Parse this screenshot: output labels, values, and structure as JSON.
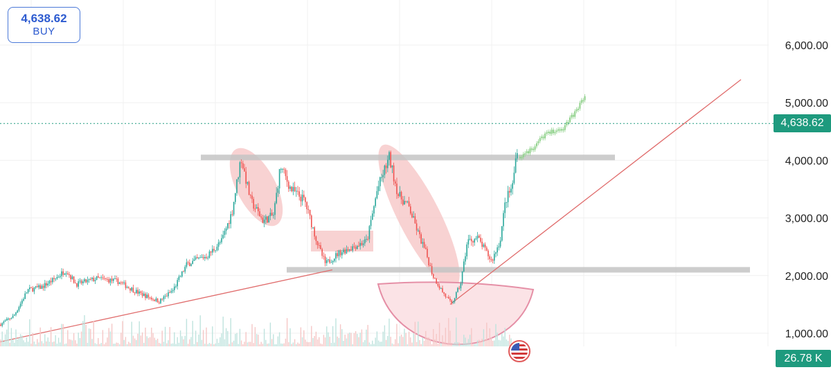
{
  "buy_box": {
    "price": "4,638.62",
    "label": "BUY"
  },
  "price_tag": "4,638.62",
  "volume_tag": "26.78 K",
  "flag_icon": "us-flag-icon",
  "colors": {
    "up": "#26a69a",
    "down": "#ef5350",
    "trendline": "#e06c6c",
    "support": "#c4c4c4",
    "highlight": "#f6c3c3",
    "projection": "#8fd18a",
    "price_tag": "#1e9a7e",
    "buy": "#2d5bd0"
  },
  "chart_data": {
    "type": "candlestick",
    "ylim": [
      650,
      6500
    ],
    "y_ticks": [
      {
        "value": 6000,
        "label": "6,000.00"
      },
      {
        "value": 5000,
        "label": "5,000.00"
      },
      {
        "value": 4000,
        "label": "4,000.00"
      },
      {
        "value": 3000,
        "label": "3,000.00"
      },
      {
        "value": 2000,
        "label": "2,000.00"
      }
    ],
    "y_tick_bottom": {
      "value": 1000,
      "label": "1,000.00"
    },
    "last_price": 4638.62,
    "price_path": [
      [
        0,
        1150
      ],
      [
        20,
        1300
      ],
      [
        40,
        1750
      ],
      [
        60,
        1800
      ],
      [
        80,
        1950
      ],
      [
        95,
        2100
      ],
      [
        110,
        1850
      ],
      [
        140,
        1950
      ],
      [
        170,
        1900
      ],
      [
        200,
        1700
      ],
      [
        230,
        1550
      ],
      [
        250,
        1750
      ],
      [
        270,
        2200
      ],
      [
        300,
        2350
      ],
      [
        320,
        2600
      ],
      [
        335,
        3100
      ],
      [
        348,
        4050
      ],
      [
        362,
        3300
      ],
      [
        380,
        2950
      ],
      [
        395,
        3050
      ],
      [
        405,
        3900
      ],
      [
        420,
        3500
      ],
      [
        440,
        3300
      ],
      [
        460,
        2500
      ],
      [
        470,
        2200
      ],
      [
        490,
        2400
      ],
      [
        510,
        2500
      ],
      [
        530,
        2600
      ],
      [
        545,
        3500
      ],
      [
        562,
        4050
      ],
      [
        575,
        3400
      ],
      [
        590,
        3200
      ],
      [
        605,
        2700
      ],
      [
        615,
        2400
      ],
      [
        625,
        2000
      ],
      [
        640,
        1700
      ],
      [
        652,
        1500
      ],
      [
        665,
        1850
      ],
      [
        675,
        2600
      ],
      [
        690,
        2650
      ],
      [
        710,
        2250
      ],
      [
        722,
        2600
      ],
      [
        730,
        3300
      ],
      [
        740,
        3550
      ],
      [
        750,
        4550
      ]
    ],
    "projection_path": [
      [
        750,
        4050
      ],
      [
        770,
        4200
      ],
      [
        790,
        4500
      ],
      [
        810,
        4500
      ],
      [
        825,
        4750
      ],
      [
        835,
        4900
      ],
      [
        845,
        5150
      ]
    ],
    "support_levels": [
      {
        "value": 4050,
        "x_start": 290,
        "x_end": 888
      },
      {
        "value": 2100,
        "x_start": 414,
        "x_end": 1083
      }
    ],
    "trendlines": [
      {
        "from": [
          0,
          850
        ],
        "to": [
          480,
          2100
        ]
      },
      {
        "from": [
          650,
          1500
        ],
        "to": [
          1070,
          5400
        ]
      }
    ],
    "volume_scale_max": 45
  }
}
